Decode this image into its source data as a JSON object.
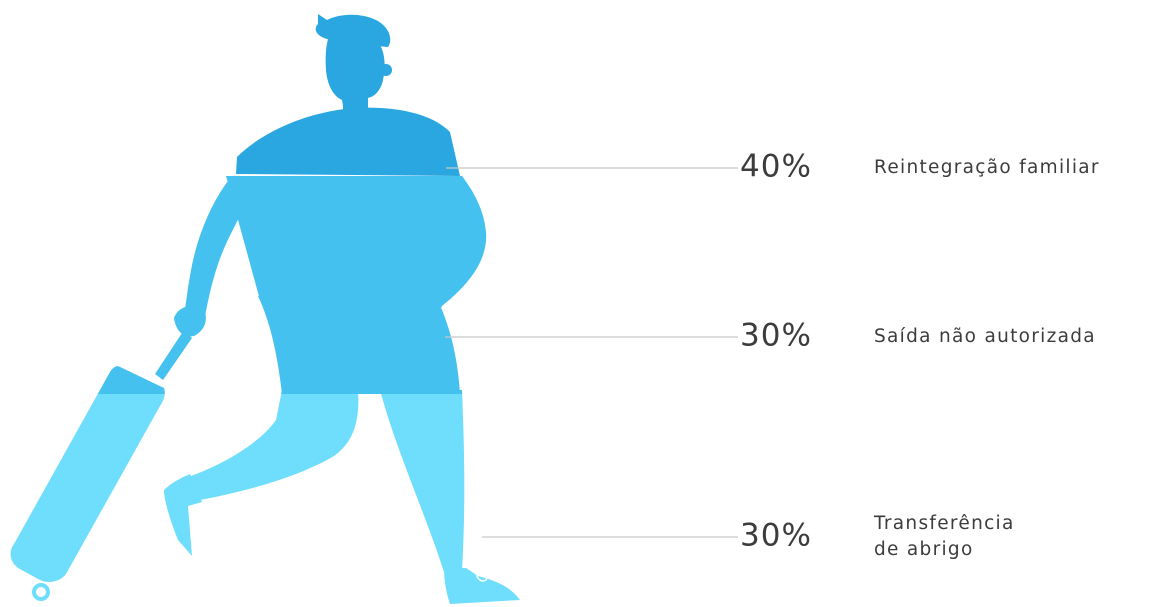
{
  "chart_data": {
    "type": "pictograph",
    "segments": [
      {
        "value": 40,
        "value_label": "40%",
        "label_lines": [
          "Reintegração familiar"
        ],
        "color": "#2AA7E0"
      },
      {
        "value": 30,
        "value_label": "30%",
        "label_lines": [
          "Saída não autorizada"
        ],
        "color": "#45C1F0"
      },
      {
        "value": 30,
        "value_label": "30%",
        "label_lines": [
          "Transferência",
          "de abrigo"
        ],
        "color": "#6FDDFC"
      }
    ],
    "leader_line_color": "#C8C8C8"
  }
}
